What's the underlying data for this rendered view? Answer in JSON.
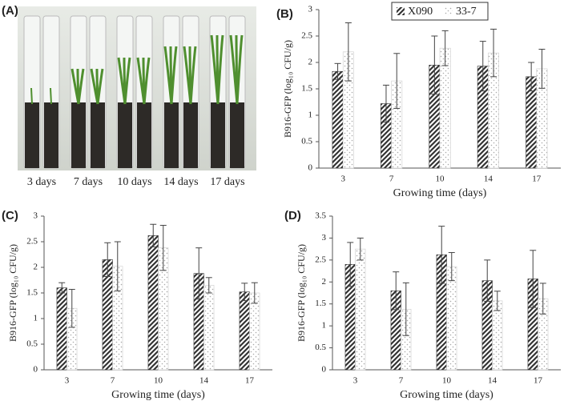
{
  "photo": {
    "label": "(A)",
    "captions": [
      "3 days",
      "7 days",
      "10 days",
      "14 days",
      "17 days"
    ]
  },
  "chart_data": [
    {
      "type": "bar",
      "panel_label": "(B)",
      "x_label": "Growing time (days)",
      "y_label": "B916-GFP (log₁₀ CFU/g)",
      "categories": [
        "3",
        "7",
        "10",
        "14",
        "17"
      ],
      "ylim": [
        0,
        3
      ],
      "yticks": [
        0,
        0.5,
        1,
        1.5,
        2,
        2.5,
        3
      ],
      "legend": "top",
      "series": [
        {
          "name": "X090",
          "color": "#333333",
          "hatch": "diagonal",
          "values": [
            1.83,
            1.22,
            1.95,
            1.93,
            1.73
          ],
          "errors": [
            0.15,
            0.35,
            0.55,
            0.47,
            0.27
          ]
        },
        {
          "name": "33-7",
          "color": "#aaaaaa",
          "hatch": "dots",
          "values": [
            2.2,
            1.65,
            2.27,
            2.18,
            1.88
          ],
          "errors": [
            0.55,
            0.52,
            0.33,
            0.45,
            0.37
          ]
        }
      ]
    },
    {
      "type": "bar",
      "panel_label": "(C)",
      "x_label": "Growing time (days)",
      "y_label": "B916-GFP (log₁₀ CFU/g)",
      "categories": [
        "3",
        "7",
        "10",
        "14",
        "17"
      ],
      "ylim": [
        0,
        3
      ],
      "yticks": [
        0,
        0.5,
        1,
        1.5,
        2,
        2.5,
        3
      ],
      "series": [
        {
          "color": "#333333",
          "hatch": "diagonal",
          "values": [
            1.6,
            2.15,
            2.62,
            1.88,
            1.52
          ],
          "errors": [
            0.1,
            0.33,
            0.22,
            0.5,
            0.17
          ]
        },
        {
          "color": "#aaaaaa",
          "hatch": "dots",
          "values": [
            1.2,
            2.02,
            2.38,
            1.65,
            1.5
          ],
          "errors": [
            0.37,
            0.48,
            0.44,
            0.15,
            0.2
          ]
        }
      ]
    },
    {
      "type": "bar",
      "panel_label": "(D)",
      "x_label": "Growing time (days)",
      "y_label": "B916-GFP (log₁₀ CFU/g)",
      "categories": [
        "3",
        "7",
        "10",
        "14",
        "17"
      ],
      "ylim": [
        0,
        3.5
      ],
      "yticks": [
        0,
        0.5,
        1,
        1.5,
        2,
        2.5,
        3,
        3.5
      ],
      "series": [
        {
          "color": "#333333",
          "hatch": "diagonal",
          "values": [
            2.4,
            1.8,
            2.62,
            2.03,
            2.07
          ],
          "errors": [
            0.5,
            0.43,
            0.65,
            0.47,
            0.65
          ]
        },
        {
          "color": "#aaaaaa",
          "hatch": "dots",
          "values": [
            2.75,
            1.38,
            2.35,
            1.57,
            1.62
          ],
          "errors": [
            0.25,
            0.6,
            0.32,
            0.22,
            0.35
          ]
        }
      ]
    }
  ]
}
